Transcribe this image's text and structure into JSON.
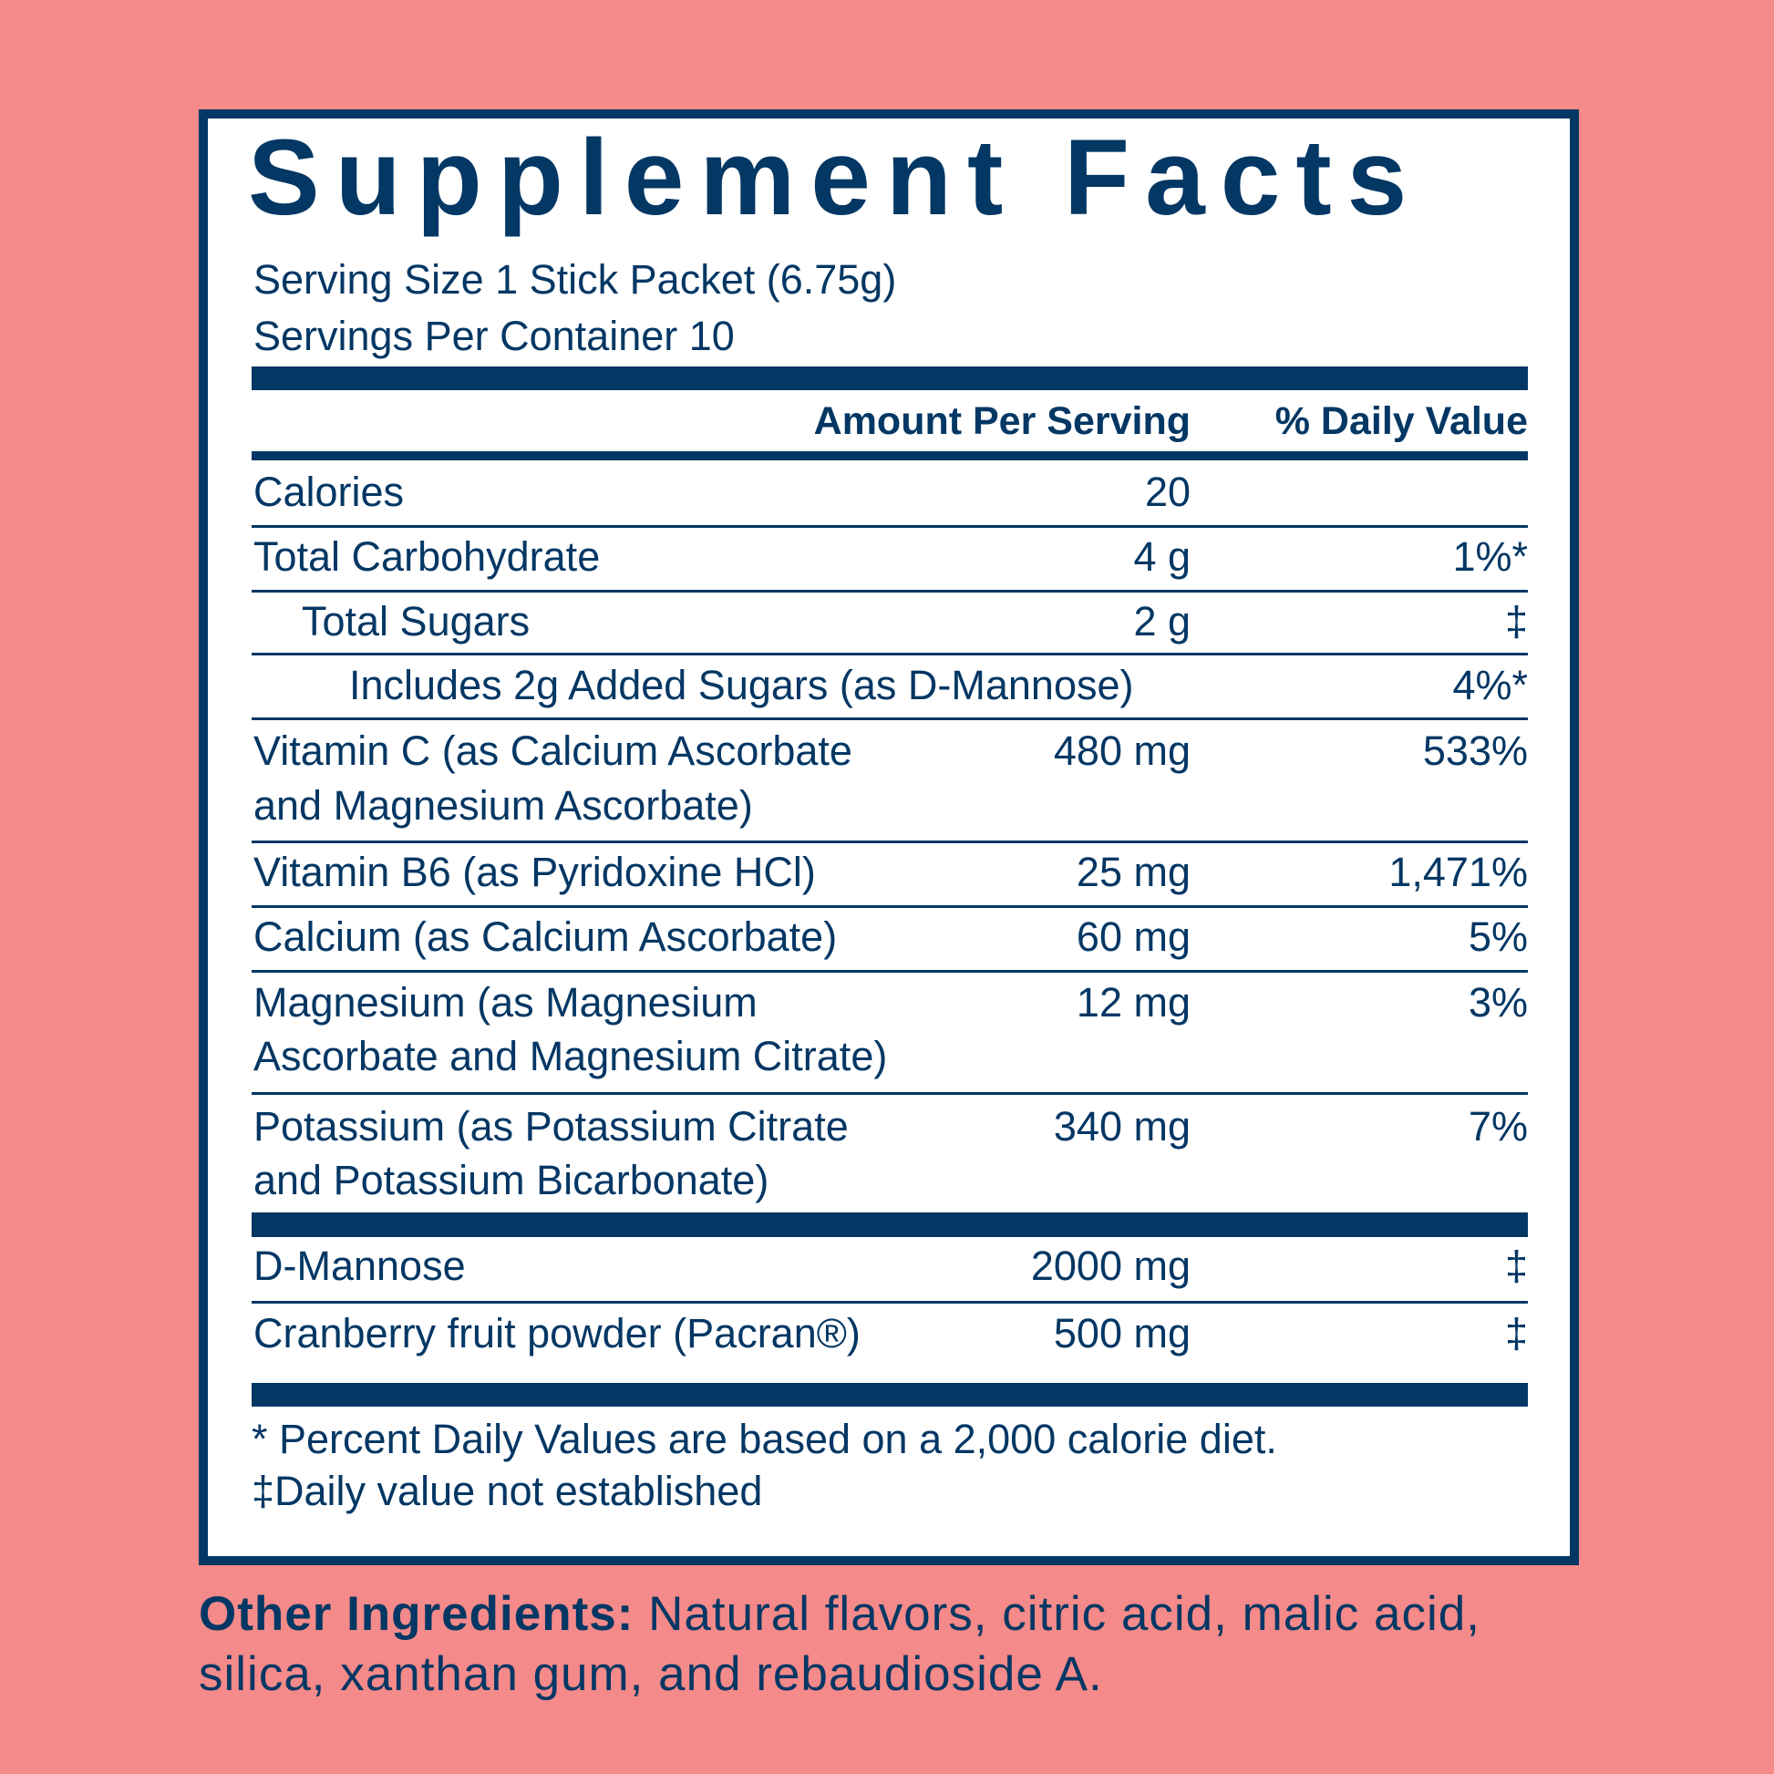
{
  "title": "Supplement Facts",
  "serving_size": "Serving Size 1 Stick Packet (6.75g)",
  "servings_per_container": "Servings Per Container 10",
  "header": {
    "amount": "Amount Per Serving",
    "dv": "% Daily Value"
  },
  "rows": [
    {
      "name": "Calories",
      "amount": "20",
      "dv": ""
    },
    {
      "name": "Total Carbohydrate",
      "amount": "4 g",
      "dv": "1%*"
    },
    {
      "name": "Total Sugars",
      "amount": "2 g",
      "dv": "‡"
    },
    {
      "name": "Includes 2g Added Sugars (as D-Mannose)",
      "amount": "",
      "dv": "4%*"
    },
    {
      "name": "Vitamin C (as Calcium Ascorbate",
      "name2": "and Magnesium Ascorbate)",
      "amount": "480 mg",
      "dv": "533%"
    },
    {
      "name": "Vitamin B6 (as Pyridoxine HCl)",
      "amount": "25 mg",
      "dv": "1,471%"
    },
    {
      "name": "Calcium (as Calcium Ascorbate)",
      "amount": "60 mg",
      "dv": "5%"
    },
    {
      "name": "Magnesium (as Magnesium",
      "name2": "Ascorbate and Magnesium Citrate)",
      "amount": "12 mg",
      "dv": "3%"
    },
    {
      "name": "Potassium (as Potassium Citrate",
      "name2": "and Potassium Bicarbonate)",
      "amount": "340 mg",
      "dv": "7%"
    },
    {
      "name": "D-Mannose",
      "amount": "2000 mg",
      "dv": "‡"
    },
    {
      "name": "Cranberry fruit powder (Pacran®)",
      "amount": "500 mg",
      "dv": "‡"
    }
  ],
  "footnotes": [
    "* Percent Daily Values are based on a 2,000 calorie diet.",
    "‡Daily value not established"
  ],
  "other_ingredients": {
    "label": "Other Ingredients:",
    "text": " Natural flavors, citric acid, malic acid, silica, xanthan gum, and rebaudioside A."
  },
  "colors": {
    "background": "#f48a89",
    "navy": "#033764"
  }
}
